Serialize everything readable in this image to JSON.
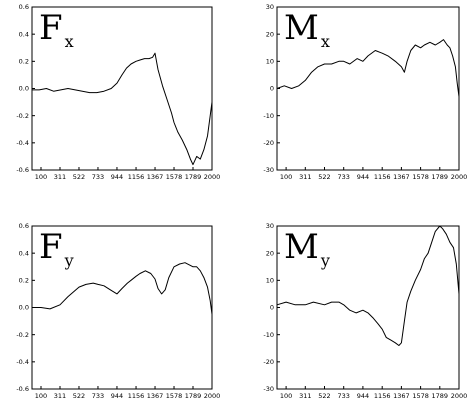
{
  "chart_data": [
    {
      "type": "line",
      "title_main": "F",
      "title_sub": "x",
      "x_ticks": [
        100,
        311,
        522,
        733,
        944,
        1156,
        1367,
        1578,
        1789,
        2000
      ],
      "y_ticks": [
        "0.6",
        "0.4",
        "0.2",
        "0.0",
        "-0.2",
        "-0.4",
        "-0.6"
      ],
      "xlim": [
        0,
        2000
      ],
      "ylim": [
        -0.6,
        0.6
      ],
      "series": [
        {
          "x": [
            0,
            80,
            160,
            240,
            320,
            400,
            480,
            560,
            640,
            720,
            800,
            880,
            944,
            1000,
            1050,
            1100,
            1156,
            1200,
            1250,
            1300,
            1340,
            1367,
            1400,
            1450,
            1500,
            1550,
            1578,
            1620,
            1670,
            1720,
            1760,
            1789,
            1830,
            1870,
            1910,
            1950,
            1980,
            2000
          ],
          "y": [
            -0.01,
            -0.01,
            0.0,
            -0.02,
            -0.01,
            0.0,
            -0.01,
            -0.02,
            -0.03,
            -0.03,
            -0.02,
            0.0,
            0.04,
            0.1,
            0.15,
            0.18,
            0.2,
            0.21,
            0.22,
            0.22,
            0.23,
            0.26,
            0.14,
            0.02,
            -0.08,
            -0.18,
            -0.25,
            -0.32,
            -0.38,
            -0.45,
            -0.52,
            -0.56,
            -0.5,
            -0.52,
            -0.45,
            -0.35,
            -0.2,
            -0.1
          ]
        }
      ]
    },
    {
      "type": "line",
      "title_main": "M",
      "title_sub": "x",
      "x_ticks": [
        100,
        311,
        522,
        733,
        944,
        1156,
        1367,
        1578,
        1789,
        2000
      ],
      "y_ticks": [
        "30",
        "20",
        "10",
        "0",
        "-10",
        "-20",
        "-30"
      ],
      "xlim": [
        0,
        2000
      ],
      "ylim": [
        -30,
        30
      ],
      "series": [
        {
          "x": [
            0,
            80,
            160,
            240,
            311,
            380,
            450,
            522,
            600,
            680,
            733,
            800,
            880,
            944,
            1000,
            1080,
            1156,
            1220,
            1300,
            1367,
            1400,
            1430,
            1470,
            1520,
            1578,
            1620,
            1680,
            1740,
            1789,
            1830,
            1870,
            1900,
            1930,
            1960,
            1980,
            2000
          ],
          "y": [
            0,
            1,
            0,
            1,
            3,
            6,
            8,
            9,
            9,
            10,
            10,
            9,
            11,
            10,
            12,
            14,
            13,
            12,
            10,
            8,
            6,
            10,
            14,
            16,
            15,
            16,
            17,
            16,
            17,
            18,
            16,
            15,
            12,
            8,
            2,
            -3
          ]
        }
      ]
    },
    {
      "type": "line",
      "title_main": "F",
      "title_sub": "y",
      "x_ticks": [
        100,
        311,
        522,
        733,
        944,
        1156,
        1367,
        1578,
        1789,
        2000
      ],
      "y_ticks": [
        "0.6",
        "0.4",
        "0.2",
        "0.0",
        "-0.2",
        "-0.4",
        "-0.6"
      ],
      "xlim": [
        0,
        2000
      ],
      "ylim": [
        -0.6,
        0.6
      ],
      "series": [
        {
          "x": [
            0,
            100,
            200,
            311,
            400,
            522,
            600,
            680,
            733,
            800,
            870,
            944,
            1000,
            1060,
            1100,
            1156,
            1200,
            1260,
            1320,
            1367,
            1400,
            1440,
            1480,
            1520,
            1578,
            1640,
            1700,
            1760,
            1789,
            1830,
            1870,
            1910,
            1950,
            1980,
            2000
          ],
          "y": [
            0.0,
            0.0,
            -0.01,
            0.02,
            0.08,
            0.15,
            0.17,
            0.18,
            0.17,
            0.16,
            0.13,
            0.1,
            0.14,
            0.18,
            0.2,
            0.23,
            0.25,
            0.27,
            0.25,
            0.21,
            0.14,
            0.1,
            0.13,
            0.22,
            0.3,
            0.32,
            0.33,
            0.31,
            0.3,
            0.3,
            0.27,
            0.22,
            0.15,
            0.05,
            -0.05
          ]
        }
      ]
    },
    {
      "type": "line",
      "title_main": "M",
      "title_sub": "y",
      "x_ticks": [
        100,
        311,
        522,
        733,
        944,
        1156,
        1367,
        1578,
        1789,
        2000
      ],
      "y_ticks": [
        "30",
        "20",
        "10",
        "0",
        "-10",
        "-20",
        "-30"
      ],
      "xlim": [
        0,
        2000
      ],
      "ylim": [
        -30,
        30
      ],
      "series": [
        {
          "x": [
            0,
            100,
            200,
            311,
            400,
            522,
            600,
            680,
            733,
            800,
            870,
            944,
            1000,
            1060,
            1110,
            1156,
            1200,
            1250,
            1300,
            1340,
            1367,
            1400,
            1430,
            1470,
            1520,
            1578,
            1620,
            1660,
            1700,
            1740,
            1789,
            1820,
            1860,
            1900,
            1940,
            1970,
            2000
          ],
          "y": [
            1,
            2,
            1,
            1,
            2,
            1,
            2,
            2,
            1,
            -1,
            -2,
            -1,
            -2,
            -4,
            -6,
            -8,
            -11,
            -12,
            -13,
            -14,
            -13,
            -5,
            2,
            6,
            10,
            14,
            18,
            20,
            24,
            28,
            30,
            29,
            27,
            24,
            22,
            16,
            5
          ]
        }
      ]
    }
  ]
}
